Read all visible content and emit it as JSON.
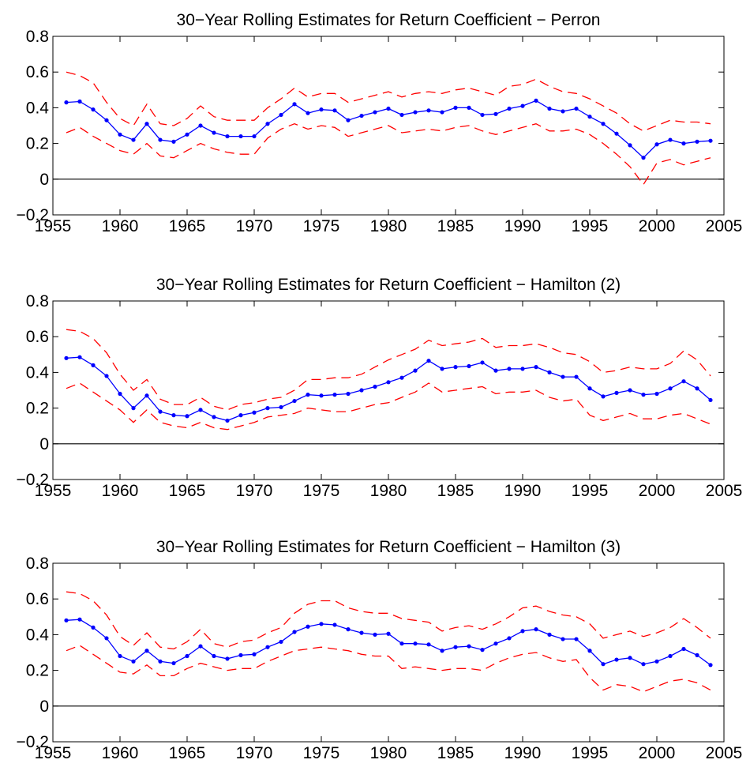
{
  "chart_data": [
    {
      "type": "line",
      "title": "30−Year Rolling Estimates for Return Coefficient − Perron",
      "xlabel": "",
      "ylabel": "",
      "xlim": [
        1955,
        2005
      ],
      "ylim": [
        -0.2,
        0.8
      ],
      "x_ticks": [
        "1955",
        "1960",
        "1965",
        "1970",
        "1975",
        "1980",
        "1985",
        "1990",
        "1995",
        "2000",
        "2005"
      ],
      "y_ticks": [
        "−0.2",
        "0",
        "0.2",
        "0.4",
        "0.6",
        "0.8"
      ],
      "x": [
        1956,
        1957,
        1958,
        1959,
        1960,
        1961,
        1962,
        1963,
        1964,
        1965,
        1966,
        1967,
        1968,
        1969,
        1970,
        1971,
        1972,
        1973,
        1974,
        1975,
        1976,
        1977,
        1978,
        1979,
        1980,
        1981,
        1982,
        1983,
        1984,
        1985,
        1986,
        1987,
        1988,
        1989,
        1990,
        1991,
        1992,
        1993,
        1994,
        1995,
        1996,
        1997,
        1998,
        1999,
        2000,
        2001,
        2002,
        2003,
        2004
      ],
      "series": [
        {
          "style": "estimate",
          "color": "#0000ff",
          "values": [
            0.43,
            0.435,
            0.39,
            0.33,
            0.25,
            0.22,
            0.31,
            0.22,
            0.21,
            0.25,
            0.3,
            0.26,
            0.24,
            0.24,
            0.24,
            0.31,
            0.36,
            0.42,
            0.37,
            0.39,
            0.385,
            0.33,
            0.355,
            0.375,
            0.395,
            0.36,
            0.375,
            0.385,
            0.375,
            0.4,
            0.4,
            0.36,
            0.365,
            0.395,
            0.41,
            0.44,
            0.395,
            0.38,
            0.395,
            0.35,
            0.31,
            0.255,
            0.19,
            0.12,
            0.195,
            0.22,
            0.2,
            0.21,
            0.215
          ]
        },
        {
          "style": "upper-band",
          "color": "#ff0000",
          "values": [
            0.6,
            0.58,
            0.54,
            0.43,
            0.34,
            0.3,
            0.42,
            0.31,
            0.3,
            0.34,
            0.41,
            0.35,
            0.33,
            0.33,
            0.33,
            0.4,
            0.45,
            0.51,
            0.46,
            0.48,
            0.48,
            0.43,
            0.45,
            0.47,
            0.49,
            0.46,
            0.48,
            0.49,
            0.48,
            0.5,
            0.51,
            0.49,
            0.47,
            0.52,
            0.53,
            0.56,
            0.52,
            0.49,
            0.48,
            0.45,
            0.41,
            0.37,
            0.31,
            0.27,
            0.3,
            0.33,
            0.32,
            0.32,
            0.31
          ]
        },
        {
          "style": "lower-band",
          "color": "#ff0000",
          "values": [
            0.26,
            0.29,
            0.24,
            0.2,
            0.16,
            0.14,
            0.2,
            0.13,
            0.12,
            0.16,
            0.2,
            0.17,
            0.15,
            0.14,
            0.14,
            0.23,
            0.28,
            0.31,
            0.28,
            0.3,
            0.29,
            0.24,
            0.26,
            0.28,
            0.3,
            0.26,
            0.27,
            0.28,
            0.27,
            0.29,
            0.3,
            0.27,
            0.25,
            0.27,
            0.29,
            0.31,
            0.27,
            0.27,
            0.28,
            0.25,
            0.2,
            0.14,
            0.07,
            -0.03,
            0.09,
            0.11,
            0.08,
            0.1,
            0.12
          ]
        }
      ]
    },
    {
      "type": "line",
      "title": "30−Year Rolling Estimates for Return Coefficient − Hamilton (2)",
      "xlabel": "",
      "ylabel": "",
      "xlim": [
        1955,
        2005
      ],
      "ylim": [
        -0.2,
        0.8
      ],
      "x_ticks": [
        "1955",
        "1960",
        "1965",
        "1970",
        "1975",
        "1980",
        "1985",
        "1990",
        "1995",
        "2000",
        "2005"
      ],
      "y_ticks": [
        "−0.2",
        "0",
        "0.2",
        "0.4",
        "0.6",
        "0.8"
      ],
      "x": [
        1956,
        1957,
        1958,
        1959,
        1960,
        1961,
        1962,
        1963,
        1964,
        1965,
        1966,
        1967,
        1968,
        1969,
        1970,
        1971,
        1972,
        1973,
        1974,
        1975,
        1976,
        1977,
        1978,
        1979,
        1980,
        1981,
        1982,
        1983,
        1984,
        1985,
        1986,
        1987,
        1988,
        1989,
        1990,
        1991,
        1992,
        1993,
        1994,
        1995,
        1996,
        1997,
        1998,
        1999,
        2000,
        2001,
        2002,
        2003,
        2004
      ],
      "series": [
        {
          "style": "estimate",
          "color": "#0000ff",
          "values": [
            0.48,
            0.485,
            0.44,
            0.38,
            0.28,
            0.2,
            0.27,
            0.18,
            0.16,
            0.155,
            0.19,
            0.15,
            0.13,
            0.16,
            0.175,
            0.2,
            0.205,
            0.24,
            0.275,
            0.27,
            0.275,
            0.28,
            0.3,
            0.32,
            0.345,
            0.37,
            0.41,
            0.465,
            0.42,
            0.43,
            0.435,
            0.455,
            0.41,
            0.42,
            0.42,
            0.43,
            0.4,
            0.375,
            0.375,
            0.31,
            0.265,
            0.285,
            0.3,
            0.275,
            0.28,
            0.31,
            0.35,
            0.31,
            0.245
          ]
        },
        {
          "style": "upper-band",
          "color": "#ff0000",
          "values": [
            0.64,
            0.63,
            0.59,
            0.51,
            0.39,
            0.3,
            0.36,
            0.25,
            0.22,
            0.22,
            0.26,
            0.21,
            0.19,
            0.22,
            0.23,
            0.25,
            0.26,
            0.3,
            0.36,
            0.36,
            0.37,
            0.37,
            0.39,
            0.43,
            0.47,
            0.5,
            0.53,
            0.58,
            0.55,
            0.56,
            0.57,
            0.59,
            0.54,
            0.55,
            0.55,
            0.56,
            0.54,
            0.51,
            0.5,
            0.46,
            0.4,
            0.41,
            0.43,
            0.42,
            0.42,
            0.45,
            0.52,
            0.47,
            0.38
          ]
        },
        {
          "style": "lower-band",
          "color": "#ff0000",
          "values": [
            0.31,
            0.34,
            0.29,
            0.24,
            0.19,
            0.12,
            0.19,
            0.12,
            0.1,
            0.09,
            0.12,
            0.09,
            0.08,
            0.1,
            0.12,
            0.15,
            0.16,
            0.17,
            0.2,
            0.19,
            0.18,
            0.18,
            0.2,
            0.22,
            0.23,
            0.26,
            0.29,
            0.34,
            0.29,
            0.3,
            0.31,
            0.32,
            0.28,
            0.29,
            0.29,
            0.3,
            0.26,
            0.24,
            0.25,
            0.16,
            0.13,
            0.15,
            0.17,
            0.14,
            0.14,
            0.16,
            0.17,
            0.14,
            0.11
          ]
        }
      ]
    },
    {
      "type": "line",
      "title": "30−Year Rolling Estimates for Return Coefficient − Hamilton (3)",
      "xlabel": "",
      "ylabel": "",
      "xlim": [
        1955,
        2005
      ],
      "ylim": [
        -0.2,
        0.8
      ],
      "x_ticks": [
        "1955",
        "1960",
        "1965",
        "1970",
        "1975",
        "1980",
        "1985",
        "1990",
        "1995",
        "2000",
        "2005"
      ],
      "y_ticks": [
        "−0.2",
        "0",
        "0.2",
        "0.4",
        "0.6",
        "0.8"
      ],
      "x": [
        1956,
        1957,
        1958,
        1959,
        1960,
        1961,
        1962,
        1963,
        1964,
        1965,
        1966,
        1967,
        1968,
        1969,
        1970,
        1971,
        1972,
        1973,
        1974,
        1975,
        1976,
        1977,
        1978,
        1979,
        1980,
        1981,
        1982,
        1983,
        1984,
        1985,
        1986,
        1987,
        1988,
        1989,
        1990,
        1991,
        1992,
        1993,
        1994,
        1995,
        1996,
        1997,
        1998,
        1999,
        2000,
        2001,
        2002,
        2003,
        2004
      ],
      "series": [
        {
          "style": "estimate",
          "color": "#0000ff",
          "values": [
            0.48,
            0.485,
            0.44,
            0.38,
            0.28,
            0.25,
            0.31,
            0.25,
            0.24,
            0.28,
            0.335,
            0.28,
            0.265,
            0.285,
            0.29,
            0.33,
            0.36,
            0.415,
            0.445,
            0.46,
            0.455,
            0.43,
            0.41,
            0.4,
            0.405,
            0.35,
            0.35,
            0.345,
            0.31,
            0.33,
            0.335,
            0.315,
            0.35,
            0.38,
            0.42,
            0.43,
            0.4,
            0.375,
            0.375,
            0.31,
            0.235,
            0.26,
            0.27,
            0.235,
            0.25,
            0.28,
            0.32,
            0.285,
            0.23
          ]
        },
        {
          "style": "upper-band",
          "color": "#ff0000",
          "values": [
            0.64,
            0.63,
            0.59,
            0.51,
            0.39,
            0.34,
            0.41,
            0.33,
            0.32,
            0.36,
            0.43,
            0.35,
            0.33,
            0.36,
            0.37,
            0.41,
            0.44,
            0.52,
            0.57,
            0.59,
            0.59,
            0.55,
            0.53,
            0.52,
            0.52,
            0.49,
            0.48,
            0.47,
            0.42,
            0.44,
            0.45,
            0.43,
            0.46,
            0.5,
            0.55,
            0.56,
            0.53,
            0.51,
            0.5,
            0.46,
            0.38,
            0.4,
            0.42,
            0.39,
            0.41,
            0.44,
            0.49,
            0.44,
            0.38
          ]
        },
        {
          "style": "lower-band",
          "color": "#ff0000",
          "values": [
            0.31,
            0.34,
            0.29,
            0.24,
            0.19,
            0.18,
            0.23,
            0.17,
            0.17,
            0.21,
            0.24,
            0.22,
            0.2,
            0.21,
            0.21,
            0.25,
            0.28,
            0.31,
            0.32,
            0.33,
            0.32,
            0.31,
            0.29,
            0.28,
            0.28,
            0.21,
            0.22,
            0.21,
            0.2,
            0.21,
            0.21,
            0.2,
            0.24,
            0.27,
            0.29,
            0.3,
            0.27,
            0.25,
            0.26,
            0.16,
            0.09,
            0.12,
            0.11,
            0.08,
            0.11,
            0.14,
            0.15,
            0.13,
            0.09
          ]
        }
      ]
    }
  ]
}
